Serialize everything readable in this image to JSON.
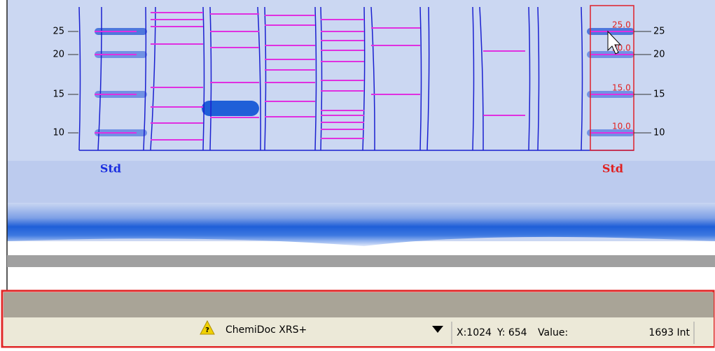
{
  "gel": {
    "left_ticks": [
      "25",
      "20",
      "15",
      "10"
    ],
    "right_ticks": [
      "25",
      "20",
      "15",
      "10"
    ],
    "left_label": "Std",
    "right_label": "Std",
    "std_band_labels": [
      "25.0",
      "20.0",
      "15.0",
      "10.0"
    ]
  },
  "status_bar": {
    "device": "ChemiDoc XRS+",
    "x": "X:1024",
    "y": "Y: 654",
    "value_label": "Value:",
    "value": "1693 Int"
  }
}
